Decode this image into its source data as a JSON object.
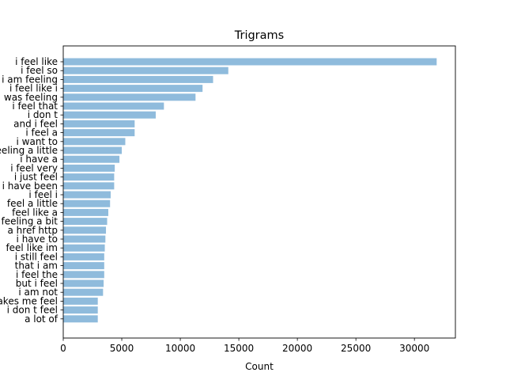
{
  "chart_data": {
    "type": "bar",
    "orientation": "horizontal",
    "title": "Trigrams",
    "xlabel": "Count",
    "ylabel": "",
    "xlim": [
      0,
      33500
    ],
    "xticks": [
      0,
      5000,
      10000,
      15000,
      20000,
      25000,
      30000
    ],
    "grid": false,
    "bar_color": "#8fbbdc",
    "categories": [
      "i feel like",
      "i feel so",
      "i am feeling",
      "i feel like i",
      "i was feeling",
      "i feel that",
      "i don t",
      "and i feel",
      "i feel a",
      "i want to",
      "feeling a little",
      "i have a",
      "i feel very",
      "i just feel",
      "i have been",
      "i feel i",
      "feel a little",
      "feel like a",
      "feeling a bit",
      "a href http",
      "i have to",
      "feel like im",
      "i still feel",
      "that i am",
      "i feel the",
      "but i feel",
      "i am not",
      "makes me feel",
      "i don t feel",
      "a lot of"
    ],
    "values": [
      31900,
      14100,
      12800,
      11900,
      11300,
      8600,
      7900,
      6100,
      6100,
      5300,
      5000,
      4800,
      4400,
      4350,
      4350,
      4050,
      4000,
      3850,
      3750,
      3650,
      3600,
      3550,
      3500,
      3500,
      3500,
      3450,
      3400,
      2950,
      2950,
      2950
    ]
  }
}
